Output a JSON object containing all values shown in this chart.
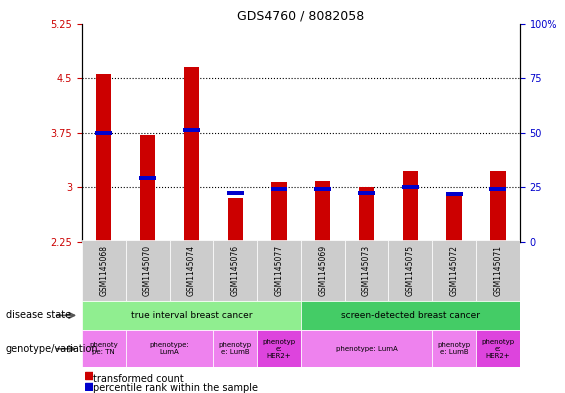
{
  "title": "GDS4760 / 8082058",
  "samples": [
    "GSM1145068",
    "GSM1145070",
    "GSM1145074",
    "GSM1145076",
    "GSM1145077",
    "GSM1145069",
    "GSM1145073",
    "GSM1145075",
    "GSM1145072",
    "GSM1145071"
  ],
  "transformed_count": [
    4.55,
    3.72,
    4.65,
    2.85,
    3.07,
    3.08,
    3.0,
    3.22,
    2.88,
    3.22
  ],
  "percentile_rank_left": [
    3.75,
    3.12,
    3.78,
    2.92,
    2.97,
    2.97,
    2.92,
    3.0,
    2.9,
    2.98
  ],
  "base": 2.25,
  "ylim_left": [
    2.25,
    5.25
  ],
  "ylim_right": [
    0,
    100
  ],
  "yticks_left": [
    2.25,
    3.0,
    3.75,
    4.5,
    5.25
  ],
  "yticks_right": [
    0,
    25,
    50,
    75,
    100
  ],
  "ytick_labels_left": [
    "2.25",
    "3",
    "3.75",
    "4.5",
    "5.25"
  ],
  "ytick_labels_right": [
    "0",
    "25",
    "50",
    "75",
    "100%"
  ],
  "hlines": [
    3.0,
    3.75,
    4.5
  ],
  "bar_color": "#cc0000",
  "pct_color": "#0000cc",
  "disease_state": [
    {
      "label": "true interval breast cancer",
      "start": 0,
      "end": 5,
      "color": "#90EE90"
    },
    {
      "label": "screen-detected breast cancer",
      "start": 5,
      "end": 10,
      "color": "#44cc66"
    }
  ],
  "genotype": [
    {
      "label": "phenoty\npe: TN",
      "start": 0,
      "end": 1,
      "color": "#ee82ee"
    },
    {
      "label": "phenotype:\nLumA",
      "start": 1,
      "end": 3,
      "color": "#ee82ee"
    },
    {
      "label": "phenotyp\ne: LumB",
      "start": 3,
      "end": 4,
      "color": "#ee82ee"
    },
    {
      "label": "phenotyp\ne:\nHER2+",
      "start": 4,
      "end": 5,
      "color": "#dd44dd"
    },
    {
      "label": "phenotype: LumA",
      "start": 5,
      "end": 8,
      "color": "#ee82ee"
    },
    {
      "label": "phenotyp\ne: LumB",
      "start": 8,
      "end": 9,
      "color": "#ee82ee"
    },
    {
      "label": "phenotyp\ne:\nHER2+",
      "start": 9,
      "end": 10,
      "color": "#dd44dd"
    }
  ],
  "sample_bg_color": "#cccccc",
  "left_label_color": "#cc0000",
  "right_label_color": "#0000cc",
  "plot_bg": "#ffffff"
}
